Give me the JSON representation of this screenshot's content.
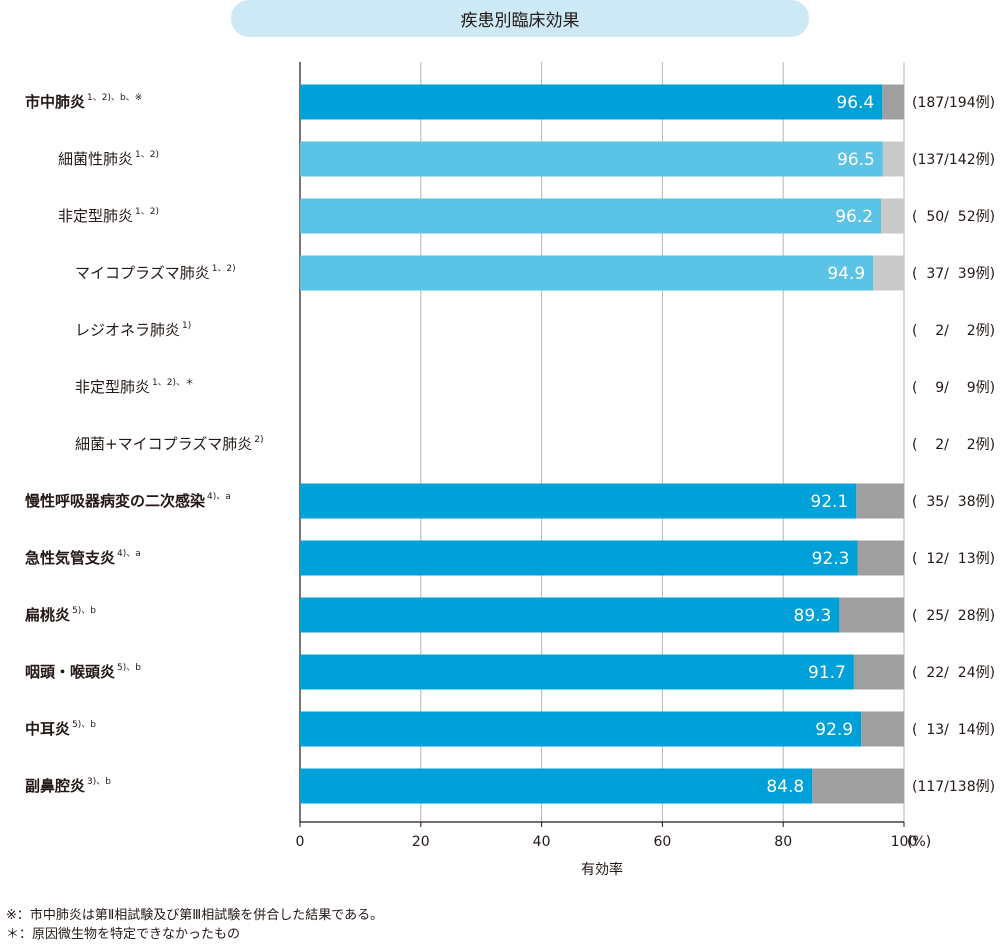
{
  "chart_data": {
    "type": "bar",
    "title": "疾患別臨床効果",
    "xlabel": "有効率",
    "xlim": [
      0,
      100
    ],
    "x_ticks": [
      "0",
      "20",
      "40",
      "60",
      "80",
      "100"
    ],
    "x_unit": "(%)",
    "grid": true,
    "rows": [
      {
        "label": "市中肺炎",
        "sup": "1、2)、b、※",
        "bold": true,
        "indent": 0,
        "value": 96.4,
        "value_label": "96.4",
        "count": "(187/194例)",
        "color": "#00a0d9",
        "rest_color": "#9f9f9f"
      },
      {
        "label": "細菌性肺炎",
        "sup": "1、2)",
        "bold": false,
        "indent": 1,
        "value": 96.5,
        "value_label": "96.5",
        "count": "(137/142例)",
        "color": "#5bc3e6",
        "rest_color": "#c9c9c9"
      },
      {
        "label": "非定型肺炎",
        "sup": "1、2)",
        "bold": false,
        "indent": 1,
        "value": 96.2,
        "value_label": "96.2",
        "count": "(  50/  52例)",
        "color": "#5bc3e6",
        "rest_color": "#c9c9c9"
      },
      {
        "label": "マイコプラズマ肺炎",
        "sup": "1、2)",
        "bold": false,
        "indent": 2,
        "value": 94.9,
        "value_label": "94.9",
        "count": "(  37/  39例)",
        "color": "#5bc3e6",
        "rest_color": "#c9c9c9"
      },
      {
        "label": "レジオネラ肺炎",
        "sup": "1)",
        "bold": false,
        "indent": 2,
        "value": null,
        "value_label": "",
        "count": "(    2/    2例)",
        "color": "#5bc3e6",
        "rest_color": "#c9c9c9"
      },
      {
        "label": "非定型肺炎",
        "sup": "1、2)、＊",
        "bold": false,
        "indent": 2,
        "value": null,
        "value_label": "",
        "count": "(    9/    9例)",
        "color": "#5bc3e6",
        "rest_color": "#c9c9c9"
      },
      {
        "label": "細菌+マイコプラズマ肺炎",
        "sup": "2)",
        "bold": false,
        "indent": 2,
        "value": null,
        "value_label": "",
        "count": "(    2/    2例)",
        "color": "#5bc3e6",
        "rest_color": "#c9c9c9"
      },
      {
        "label": "慢性呼吸器病変の二次感染",
        "sup": "4)、a",
        "bold": true,
        "indent": 0,
        "value": 92.1,
        "value_label": "92.1",
        "count": "(  35/  38例)",
        "color": "#00a0d9",
        "rest_color": "#9f9f9f"
      },
      {
        "label": "急性気管支炎",
        "sup": "4)、a",
        "bold": true,
        "indent": 0,
        "value": 92.3,
        "value_label": "92.3",
        "count": "(  12/  13例)",
        "color": "#00a0d9",
        "rest_color": "#9f9f9f"
      },
      {
        "label": "扁桃炎",
        "sup": "5)、b",
        "bold": true,
        "indent": 0,
        "value": 89.3,
        "value_label": "89.3",
        "count": "(  25/  28例)",
        "color": "#00a0d9",
        "rest_color": "#9f9f9f"
      },
      {
        "label": "咽頭・喉頭炎",
        "sup": "5)、b",
        "bold": true,
        "indent": 0,
        "value": 91.7,
        "value_label": "91.7",
        "count": "(  22/  24例)",
        "color": "#00a0d9",
        "rest_color": "#9f9f9f"
      },
      {
        "label": "中耳炎",
        "sup": "5)、b",
        "bold": true,
        "indent": 0,
        "value": 92.9,
        "value_label": "92.9",
        "count": "(  13/  14例)",
        "color": "#00a0d9",
        "rest_color": "#9f9f9f"
      },
      {
        "label": "副鼻腔炎",
        "sup": "3)、b",
        "bold": true,
        "indent": 0,
        "value": 84.8,
        "value_label": "84.8",
        "count": "(117/138例)",
        "color": "#00a0d9",
        "rest_color": "#9f9f9f"
      }
    ]
  },
  "footnotes": [
    "※：市中肺炎は第Ⅱ相試験及び第Ⅲ相試験を併合した結果である。",
    "＊：原因微生物を特定できなかったもの"
  ]
}
